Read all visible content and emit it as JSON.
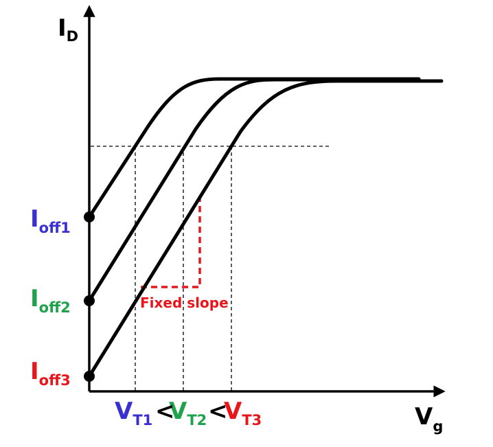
{
  "y_label": {
    "main": "I",
    "sub": "D"
  },
  "x_label": {
    "main": "V",
    "sub": "g"
  },
  "off_labels": [
    {
      "main": "I",
      "sub": "off1",
      "color": "#3a2fd0"
    },
    {
      "main": "I",
      "sub": "off2",
      "color": "#1ea34c"
    },
    {
      "main": "I",
      "sub": "off3",
      "color": "#e8151b"
    }
  ],
  "thresholds": [
    {
      "main": "V",
      "sub": "T1",
      "color": "#3a2fd0"
    },
    {
      "main": "V",
      "sub": "T2",
      "color": "#1ea34c"
    },
    {
      "main": "V",
      "sub": "T3",
      "color": "#e8151b"
    }
  ],
  "separators": [
    "<",
    "<"
  ],
  "annotation": "Fixed slope"
}
